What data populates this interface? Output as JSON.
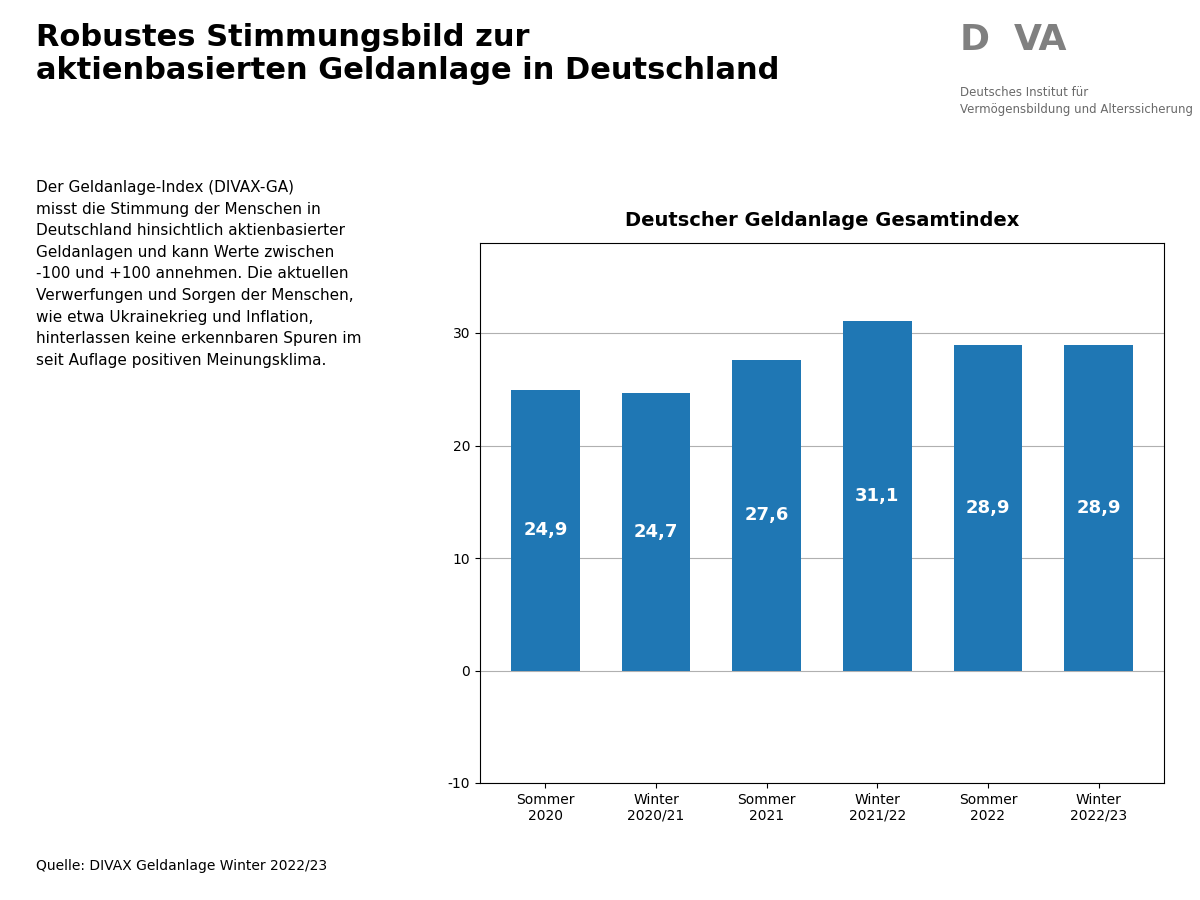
{
  "chart_data": {
    "type": "bar",
    "title": "Deutscher Geldanlage Gesamtindex",
    "categories": [
      "Sommer\n2020",
      "Winter\n2020/21",
      "Sommer\n2021",
      "Winter\n2021/22",
      "Sommer\n2022",
      "Winter\n2022/23"
    ],
    "values": [
      24.9,
      24.7,
      27.6,
      31.1,
      28.9,
      28.9
    ],
    "value_labels": [
      "24,9",
      "24,7",
      "27,6",
      "31,1",
      "28,9",
      "28,9"
    ],
    "data_labels": true,
    "ylim": [
      -10,
      38
    ],
    "yticks": [
      -10,
      0,
      10,
      20,
      30
    ],
    "grid": true,
    "annotations": [
      "Robustes Stimmungsbild zur\naktienbasierten Geldanlage in Deutschland",
      "Der Geldanlage-Index (DIVAX-GA)\nmisst die Stimmung der Menschen in\nDeutschland hinsichtlich aktienbasierter\nGeldanlagen und kann Werte zwischen\n-100 und +100 annehmen. Die aktuellen\nVerwerfungen und Sorgen der Menschen,\nwie etwa Ukrainekrieg und Inflation,\nhinterlassen keine erkennbaren Spuren im\nseit Auflage positiven Meinungsklima.",
      "Quelle: DIVAX Geldanlage Winter 2022/23",
      "D",
      "VA",
      "Deutsches Institut für",
      "Vermögensbildung und Alterssicherung"
    ]
  }
}
